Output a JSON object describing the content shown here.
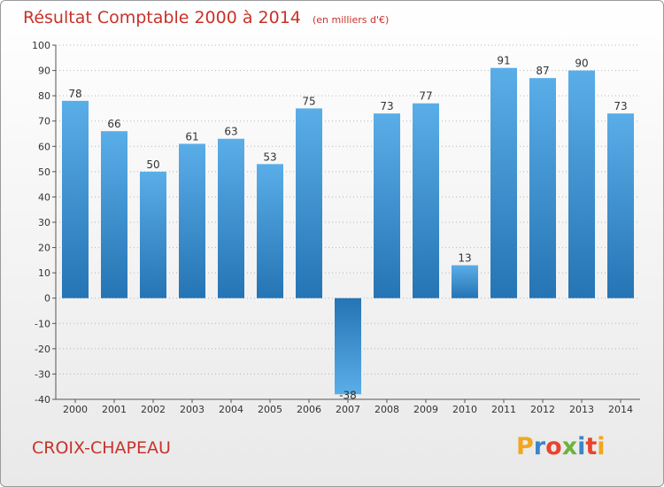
{
  "header": {
    "title": "Résultat Comptable 2000 à 2014",
    "unit": "(en milliers d'€)"
  },
  "footer": {
    "commune": "CROIX-CHAPEAU",
    "logo": "Proxiti"
  },
  "colors": {
    "title": "#c8322a",
    "bar_light": "#5aaee8",
    "bar_dark": "#2574b4"
  },
  "chart_data": {
    "type": "bar",
    "title": "Résultat Comptable 2000 à 2014",
    "ylabel": "en milliers d'€",
    "xlabel": "",
    "categories": [
      "2000",
      "2001",
      "2002",
      "2003",
      "2004",
      "2005",
      "2006",
      "2007",
      "2008",
      "2009",
      "2010",
      "2011",
      "2012",
      "2013",
      "2014"
    ],
    "values": [
      78,
      66,
      50,
      61,
      63,
      53,
      75,
      -38,
      73,
      77,
      13,
      91,
      87,
      90,
      73
    ],
    "ylim": [
      -40,
      100
    ],
    "yticks": [
      100,
      90,
      80,
      70,
      60,
      50,
      40,
      30,
      20,
      10,
      0,
      -10,
      -20,
      -30,
      -40
    ],
    "grid": true,
    "legend": "none"
  }
}
